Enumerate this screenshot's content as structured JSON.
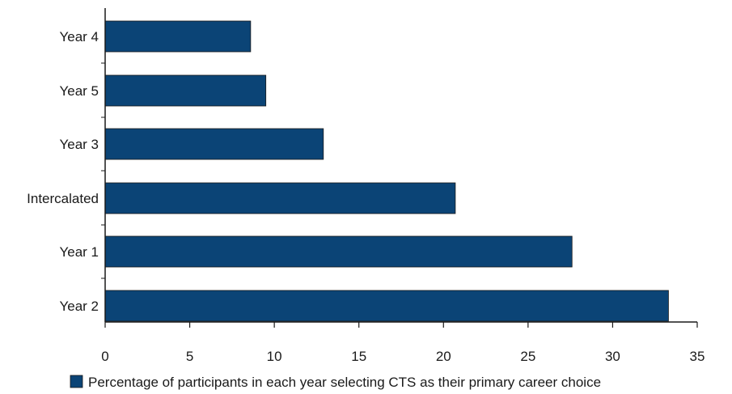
{
  "chart_data": {
    "type": "bar",
    "orientation": "horizontal",
    "categories": [
      "Year 4",
      "Year 5",
      "Year 3",
      "Intercalated",
      "Year 1",
      "Year 2"
    ],
    "series": [
      {
        "name": "Percentage of participants in each year selecting CTS as their primary career choice",
        "values": [
          8.6,
          9.5,
          12.9,
          20.7,
          27.6,
          33.3
        ],
        "color": "#0b4476"
      }
    ],
    "xlim": [
      0,
      35
    ],
    "xticks": [
      0,
      5,
      10,
      15,
      20,
      25,
      30,
      35
    ],
    "grid": false,
    "legend_position": "bottom"
  }
}
